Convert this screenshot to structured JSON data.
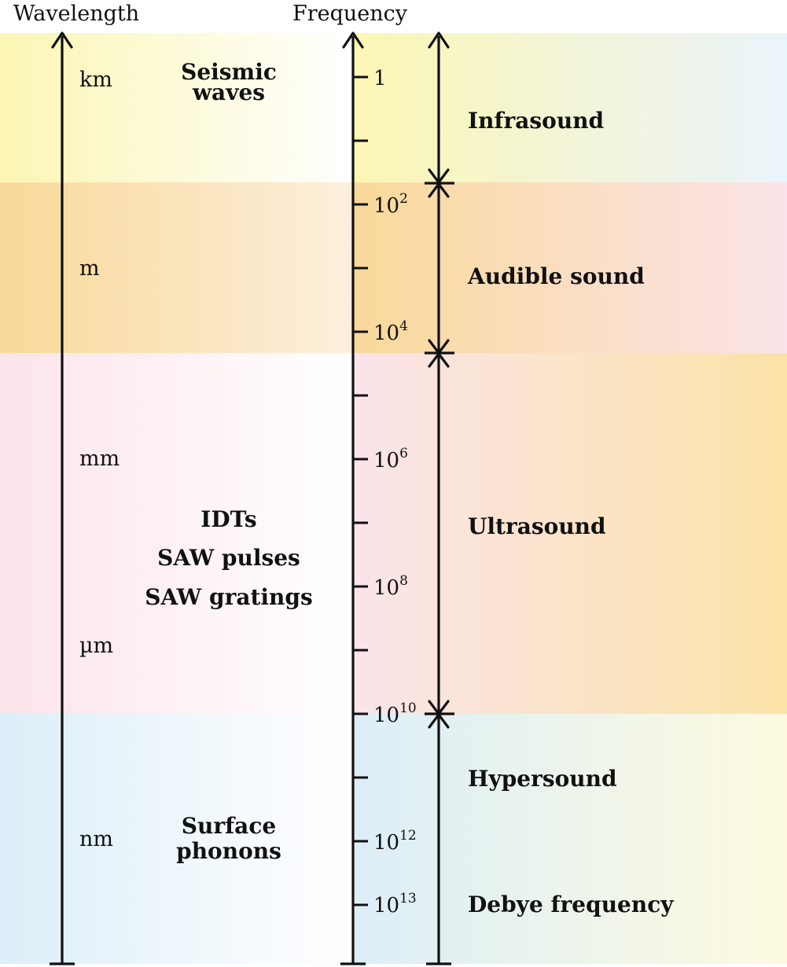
{
  "header": {
    "wavelength_title": "Wavelength",
    "frequency_title": "Frequency"
  },
  "wavelength_labels": [
    "km",
    "m",
    "mm",
    "µm",
    "nm"
  ],
  "applications": {
    "seismic": [
      "Seismic",
      "waves"
    ],
    "saw": [
      "IDTs",
      "SAW pulses",
      "SAW gratings"
    ],
    "phonons": [
      "Surface",
      "phonons"
    ]
  },
  "frequency_ticks": [
    {
      "base": "1",
      "exp": ""
    },
    {
      "base": "10",
      "exp": "2"
    },
    {
      "base": "10",
      "exp": "4"
    },
    {
      "base": "10",
      "exp": "6"
    },
    {
      "base": "10",
      "exp": "8"
    },
    {
      "base": "10",
      "exp": "10"
    },
    {
      "base": "10",
      "exp": "12"
    },
    {
      "base": "10",
      "exp": "13"
    }
  ],
  "regions": [
    {
      "label": "Infrasound",
      "colors": [
        "#fbf6b4",
        "#eaf4fb"
      ]
    },
    {
      "label": "Audible sound",
      "colors": [
        "#f9d99a",
        "#fbe4ea"
      ]
    },
    {
      "label": "Ultrasound",
      "colors": [
        "#fbe4ea",
        "#fbe3a8"
      ]
    },
    {
      "label": "Hypersound",
      "colors": [
        "#dceef8",
        "#fdfadf"
      ]
    }
  ],
  "debye_label": "Debye frequency",
  "band_colors": {
    "seismic": [
      "#fbf6b4",
      "#ffffff"
    ],
    "audible": [
      "#f9d99a",
      "#fcefdc"
    ],
    "ultra": [
      "#fbe4ea",
      "#ffffff"
    ],
    "hyper": [
      "#dceef8",
      "#ffffff"
    ]
  }
}
